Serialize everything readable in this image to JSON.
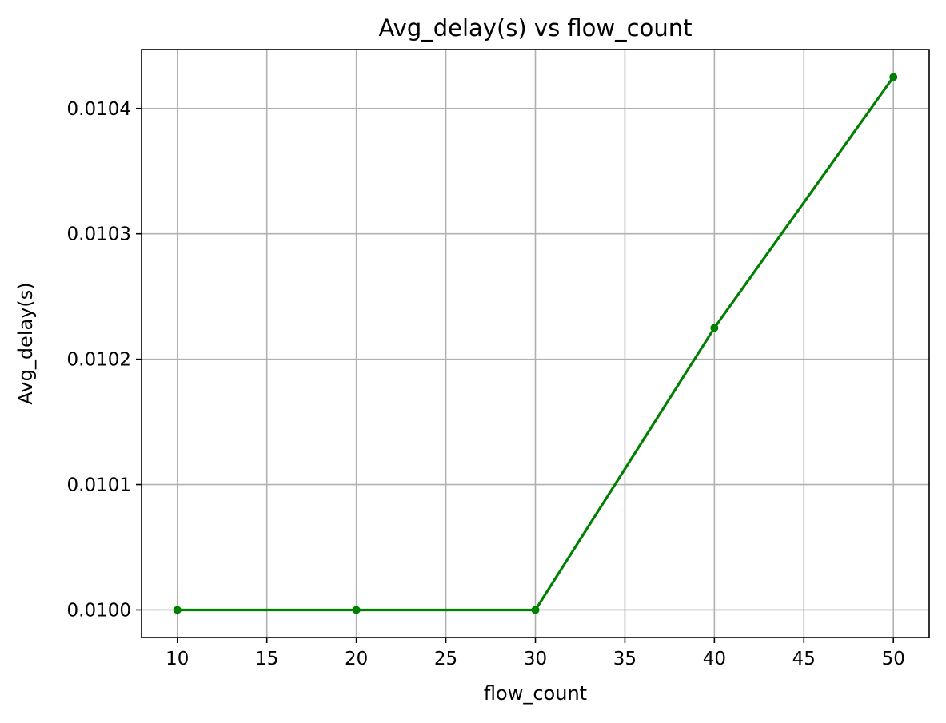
{
  "chart_data": {
    "type": "line",
    "title": "Avg_delay(s) vs flow_count",
    "xlabel": "flow_count",
    "ylabel": "Avg_delay(s)",
    "x": [
      10,
      20,
      30,
      40,
      50
    ],
    "series": [
      {
        "values": [
          0.01,
          0.01,
          0.01,
          0.010225,
          0.010425
        ],
        "color": "#008000",
        "marker": "circle"
      }
    ],
    "xlim": [
      8,
      52
    ],
    "ylim": [
      0.009978,
      0.010447
    ],
    "xticks": [
      10,
      15,
      20,
      25,
      30,
      35,
      40,
      45,
      50
    ],
    "xtick_labels": [
      "10",
      "15",
      "20",
      "25",
      "30",
      "35",
      "40",
      "45",
      "50"
    ],
    "yticks": [
      0.01,
      0.0101,
      0.0102,
      0.0103,
      0.0104
    ],
    "ytick_labels": [
      "0.0100",
      "0.0101",
      "0.0102",
      "0.0103",
      "0.0104"
    ],
    "grid": true,
    "legend": "none"
  }
}
